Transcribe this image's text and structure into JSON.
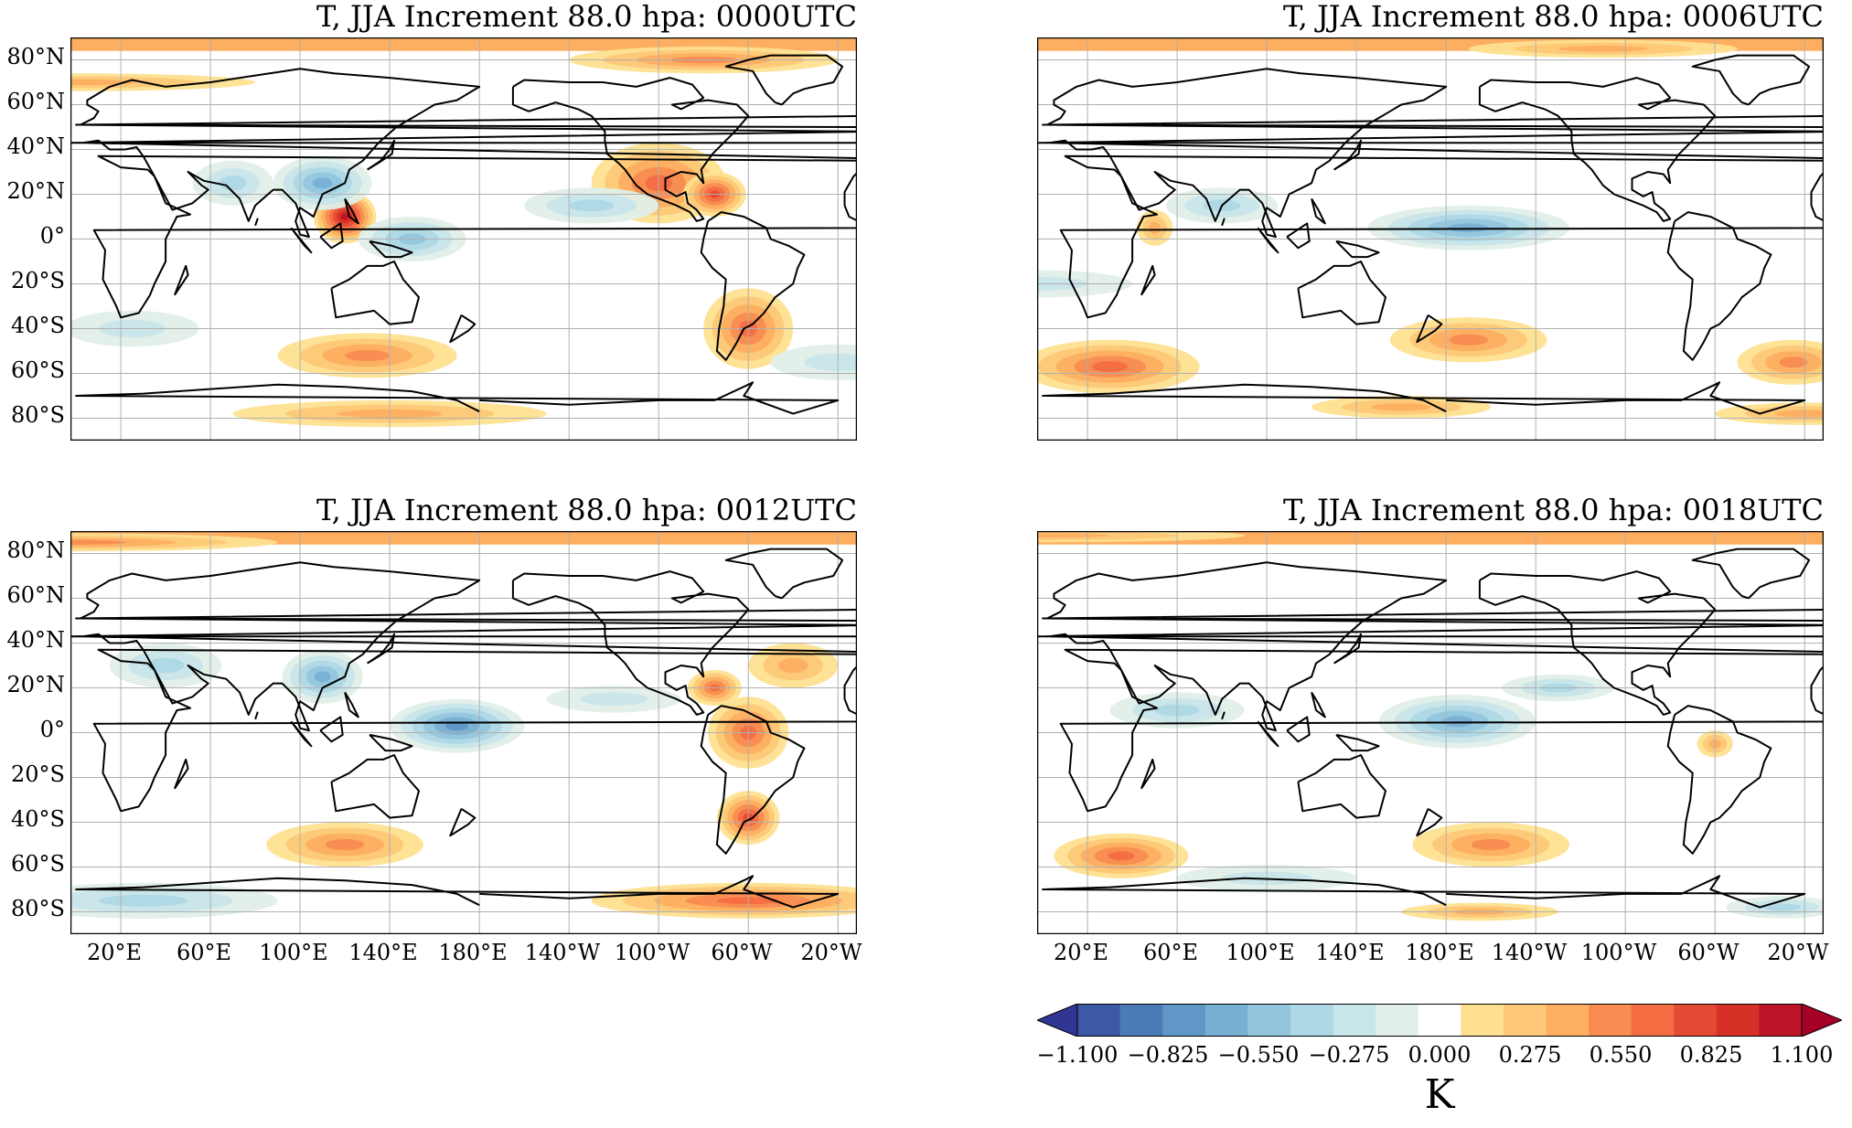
{
  "panels": [
    {
      "title": "T, JJA Increment 88.0 hpa: 0000UTC",
      "blobs": [
        {
          "lon": 120,
          "lat": 10,
          "rx": 14,
          "ry": 12,
          "v": 0.9
        },
        {
          "lon": 110,
          "lat": 25,
          "rx": 22,
          "ry": 12,
          "v": -0.6
        },
        {
          "lon": 150,
          "lat": 0,
          "rx": 24,
          "ry": 10,
          "v": -0.45
        },
        {
          "lon": -100,
          "lat": 25,
          "rx": 30,
          "ry": 18,
          "v": 0.55
        },
        {
          "lon": -75,
          "lat": 20,
          "rx": 14,
          "ry": 10,
          "v": 0.65
        },
        {
          "lon": -60,
          "lat": -40,
          "rx": 20,
          "ry": 18,
          "v": 0.6
        },
        {
          "lon": 130,
          "lat": -52,
          "rx": 40,
          "ry": 10,
          "v": 0.4
        },
        {
          "lon": 0,
          "lat": 70,
          "rx": 80,
          "ry": 4,
          "v": 0.35
        },
        {
          "lon": -80,
          "lat": 80,
          "rx": 60,
          "ry": 6,
          "v": 0.45
        },
        {
          "lon": -130,
          "lat": 15,
          "rx": 30,
          "ry": 8,
          "v": -0.3
        },
        {
          "lon": 25,
          "lat": -40,
          "rx": 30,
          "ry": 8,
          "v": -0.25
        },
        {
          "lon": 140,
          "lat": -78,
          "rx": 70,
          "ry": 6,
          "v": 0.3
        },
        {
          "lon": 70,
          "lat": 25,
          "rx": 18,
          "ry": 10,
          "v": -0.35
        },
        {
          "lon": -20,
          "lat": -55,
          "rx": 30,
          "ry": 8,
          "v": -0.2
        }
      ]
    },
    {
      "title": "T, JJA Increment 88.0 hpa: 0006UTC",
      "blobs": [
        {
          "lon": -170,
          "lat": 5,
          "rx": 45,
          "ry": 10,
          "v": -0.5
        },
        {
          "lon": 30,
          "lat": -57,
          "rx": 40,
          "ry": 12,
          "v": 0.55
        },
        {
          "lon": -170,
          "lat": -45,
          "rx": 35,
          "ry": 10,
          "v": 0.45
        },
        {
          "lon": -25,
          "lat": -55,
          "rx": 25,
          "ry": 10,
          "v": 0.45
        },
        {
          "lon": 160,
          "lat": -75,
          "rx": 40,
          "ry": 5,
          "v": 0.3
        },
        {
          "lon": -20,
          "lat": -78,
          "rx": 40,
          "ry": 5,
          "v": 0.35
        },
        {
          "lon": 50,
          "lat": 5,
          "rx": 8,
          "ry": 8,
          "v": 0.35
        },
        {
          "lon": 80,
          "lat": 15,
          "rx": 25,
          "ry": 8,
          "v": -0.3
        },
        {
          "lon": -110,
          "lat": 85,
          "rx": 60,
          "ry": 4,
          "v": 0.35
        },
        {
          "lon": 0,
          "lat": -20,
          "rx": 40,
          "ry": 6,
          "v": -0.2
        }
      ]
    },
    {
      "title": "T, JJA Increment 88.0 hpa: 0012UTC",
      "blobs": [
        {
          "lon": 110,
          "lat": 25,
          "rx": 18,
          "ry": 12,
          "v": -0.6
        },
        {
          "lon": 170,
          "lat": 3,
          "rx": 30,
          "ry": 12,
          "v": -0.65
        },
        {
          "lon": -60,
          "lat": 0,
          "rx": 18,
          "ry": 16,
          "v": 0.55
        },
        {
          "lon": -75,
          "lat": 20,
          "rx": 12,
          "ry": 8,
          "v": 0.6
        },
        {
          "lon": -60,
          "lat": -38,
          "rx": 14,
          "ry": 12,
          "v": 0.7
        },
        {
          "lon": -60,
          "lat": -75,
          "rx": 70,
          "ry": 8,
          "v": 0.5
        },
        {
          "lon": 120,
          "lat": -50,
          "rx": 35,
          "ry": 10,
          "v": 0.4
        },
        {
          "lon": 0,
          "lat": 85,
          "rx": 90,
          "ry": 4,
          "v": 0.4
        },
        {
          "lon": 30,
          "lat": -75,
          "rx": 60,
          "ry": 8,
          "v": -0.3
        },
        {
          "lon": 40,
          "lat": 30,
          "rx": 25,
          "ry": 10,
          "v": -0.35
        },
        {
          "lon": -120,
          "lat": 15,
          "rx": 30,
          "ry": 6,
          "v": -0.25
        },
        {
          "lon": -40,
          "lat": 30,
          "rx": 20,
          "ry": 10,
          "v": 0.3
        }
      ]
    },
    {
      "title": "T, JJA Increment 88.0 hpa: 0018UTC",
      "blobs": [
        {
          "lon": -175,
          "lat": 5,
          "rx": 35,
          "ry": 12,
          "v": -0.55
        },
        {
          "lon": 35,
          "lat": -55,
          "rx": 30,
          "ry": 10,
          "v": 0.6
        },
        {
          "lon": -160,
          "lat": -50,
          "rx": 35,
          "ry": 10,
          "v": 0.45
        },
        {
          "lon": -165,
          "lat": -80,
          "rx": 35,
          "ry": 4,
          "v": 0.35
        },
        {
          "lon": 60,
          "lat": 10,
          "rx": 30,
          "ry": 8,
          "v": -0.35
        },
        {
          "lon": -60,
          "lat": -5,
          "rx": 8,
          "ry": 6,
          "v": 0.35
        },
        {
          "lon": 100,
          "lat": -65,
          "rx": 40,
          "ry": 6,
          "v": -0.2
        },
        {
          "lon": 0,
          "lat": 88,
          "rx": 90,
          "ry": 3,
          "v": 0.3
        },
        {
          "lon": -130,
          "lat": 20,
          "rx": 25,
          "ry": 6,
          "v": -0.3
        },
        {
          "lon": -30,
          "lat": -78,
          "rx": 25,
          "ry": 5,
          "v": -0.3
        }
      ]
    }
  ],
  "lat_labels": [
    "80°N",
    "60°N",
    "40°N",
    "20°N",
    "0°",
    "20°S",
    "40°S",
    "60°S",
    "80°S"
  ],
  "lon_labels": [
    "20°E",
    "60°E",
    "100°E",
    "140°E",
    "180°E",
    "140°W",
    "100°W",
    "60°W",
    "20°W"
  ],
  "colorbar": {
    "ticks": [
      "−1.100",
      "−0.825",
      "−0.550",
      "−0.275",
      "0.000",
      "0.275",
      "0.550",
      "0.825",
      "1.100"
    ],
    "unit": "K",
    "vmin": -1.1,
    "vmax": 1.1,
    "colors": [
      "#313695",
      "#3c59a6",
      "#4a7bb7",
      "#5f97c6",
      "#78b0d3",
      "#93c6de",
      "#aed8e6",
      "#c8e5ea",
      "#e0efe8",
      "#ffffff",
      "#fee090",
      "#fdc877",
      "#fdae61",
      "#f88c51",
      "#f46d43",
      "#e34a33",
      "#d73027",
      "#bd1427",
      "#a50026"
    ]
  }
}
